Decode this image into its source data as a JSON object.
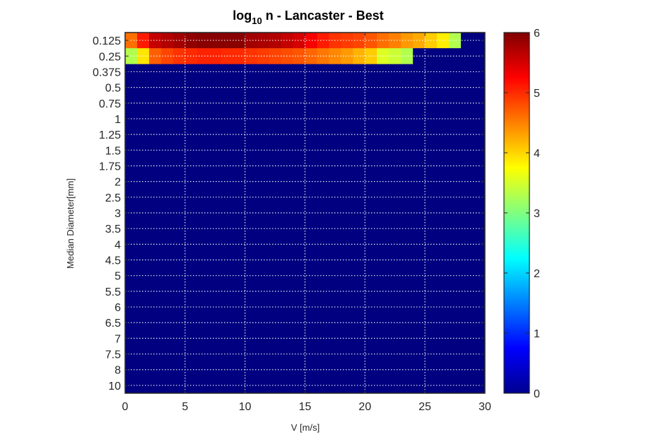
{
  "chart_data": {
    "type": "heatmap",
    "title": {
      "base": "log",
      "subscript": "10",
      "rest": " n - Lancaster - Best"
    },
    "xlabel": "V [m/s]",
    "ylabel": "Median Diameter[mm]",
    "xlim": [
      0,
      30
    ],
    "xticks": [
      "0",
      "5",
      "10",
      "15",
      "20",
      "25",
      "30"
    ],
    "ycategories": [
      "0.125",
      "0.25",
      "0.375",
      "0.5",
      "0.75",
      "1",
      "1.25",
      "1.5",
      "1.75",
      "2",
      "2.5",
      "3",
      "3.5",
      "4",
      "4.5",
      "5",
      "5.5",
      "6",
      "6.5",
      "7",
      "7.5",
      "8",
      "10"
    ],
    "colorbar": {
      "colormap": "jet",
      "clim": [
        0,
        6
      ],
      "ticks": [
        "0",
        "1",
        "2",
        "3",
        "4",
        "5",
        "6"
      ]
    },
    "grid": true,
    "cell_width": 1,
    "rows": [
      {
        "diameter": "0.125",
        "v_start": 0,
        "values": [
          4.6,
          5.1,
          5.6,
          5.7,
          5.8,
          5.9,
          5.95,
          5.95,
          5.95,
          5.95,
          5.8,
          5.75,
          5.7,
          5.6,
          5.5,
          5.3,
          5.1,
          4.95,
          4.9,
          4.85,
          4.75,
          4.6,
          4.5,
          4.35,
          4.25,
          4.05,
          3.85,
          3.3,
          0,
          0
        ]
      },
      {
        "diameter": "0.25",
        "v_start": 0,
        "values": [
          3.3,
          3.9,
          4.7,
          4.85,
          4.95,
          5.0,
          5.05,
          5.05,
          5.0,
          5.0,
          4.95,
          4.9,
          4.85,
          4.8,
          4.75,
          4.65,
          4.55,
          4.45,
          4.35,
          4.2,
          4.05,
          3.55,
          3.45,
          3.3,
          0,
          0,
          0,
          0,
          0,
          0
        ]
      }
    ]
  }
}
